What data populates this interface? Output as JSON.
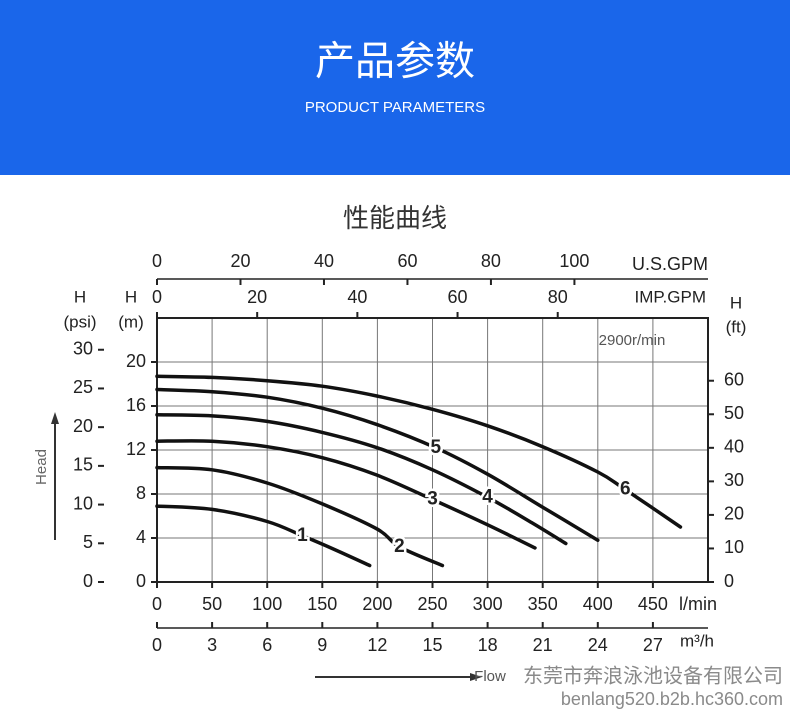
{
  "header": {
    "title": "产品参数",
    "subtitle": "PRODUCT PARAMETERS"
  },
  "chart_data": {
    "type": "line",
    "title": "性能曲线",
    "annotation": "2900r/min",
    "x_title": "Flow",
    "y_title": "Head",
    "x_label": "l/min",
    "xlim": [
      0,
      500
    ],
    "xticks": [
      0,
      50,
      100,
      150,
      200,
      250,
      300,
      350,
      400,
      450
    ],
    "y_symbol": "H",
    "y_label": "(m)",
    "ylim": [
      0,
      24
    ],
    "yticks": [
      0,
      4,
      8,
      12,
      16,
      20
    ],
    "grid": true,
    "psi_axis": {
      "symbol": "H",
      "label": "(psi)",
      "lim": [
        0,
        34.1
      ],
      "ticks": [
        0,
        5,
        10,
        15,
        20,
        25,
        30
      ]
    },
    "ft_axis": {
      "symbol": "H",
      "label": "(ft)",
      "lim": [
        0,
        78.7
      ],
      "ticks": [
        0,
        10,
        20,
        30,
        40,
        50,
        60
      ]
    },
    "us_gpm_axis": {
      "label": "U.S.GPM",
      "lim": [
        0,
        132
      ],
      "ticks": [
        0,
        20,
        40,
        60,
        80,
        100
      ]
    },
    "imp_gpm_axis": {
      "label": "IMP.GPM",
      "lim": [
        0,
        110
      ],
      "ticks": [
        0,
        20,
        40,
        60,
        80
      ]
    },
    "m3h_axis": {
      "label": "m³/h",
      "lim": [
        0,
        30
      ],
      "ticks": [
        0,
        3,
        6,
        9,
        12,
        15,
        18,
        21,
        24,
        27
      ]
    },
    "series": [
      {
        "name": "1",
        "color": "#111111",
        "x": [
          0,
          50,
          100,
          132,
          160,
          193
        ],
        "values": [
          6.9,
          6.6,
          5.5,
          4.2,
          3.0,
          1.5
        ]
      },
      {
        "name": "2",
        "color": "#111111",
        "x": [
          0,
          50,
          100,
          150,
          200,
          220,
          259
        ],
        "values": [
          10.4,
          10.2,
          9.0,
          7.1,
          4.8,
          3.2,
          1.5
        ]
      },
      {
        "name": "3",
        "color": "#111111",
        "x": [
          0,
          50,
          100,
          150,
          200,
          250,
          300,
          343
        ],
        "values": [
          12.8,
          12.8,
          12.3,
          11.3,
          9.7,
          7.5,
          5.2,
          3.1
        ]
      },
      {
        "name": "4",
        "color": "#111111",
        "x": [
          0,
          50,
          100,
          150,
          200,
          250,
          300,
          340,
          371
        ],
        "values": [
          15.2,
          15.1,
          14.6,
          13.6,
          12.2,
          10.2,
          7.7,
          5.4,
          3.5
        ]
      },
      {
        "name": "5",
        "color": "#111111",
        "x": [
          0,
          50,
          100,
          150,
          200,
          253,
          300,
          350,
          400
        ],
        "values": [
          17.5,
          17.3,
          16.8,
          15.8,
          14.3,
          12.2,
          9.8,
          6.8,
          3.8
        ]
      },
      {
        "name": "6",
        "color": "#111111",
        "x": [
          0,
          50,
          100,
          150,
          200,
          250,
          300,
          350,
          400,
          425,
          475
        ],
        "values": [
          18.7,
          18.6,
          18.3,
          17.8,
          16.9,
          15.7,
          14.2,
          12.3,
          10.0,
          8.4,
          5.0
        ]
      }
    ]
  },
  "watermark": {
    "company": "东莞市奔浪泳池设备有限公司",
    "url": "benlang520.b2b.hc360.com"
  }
}
